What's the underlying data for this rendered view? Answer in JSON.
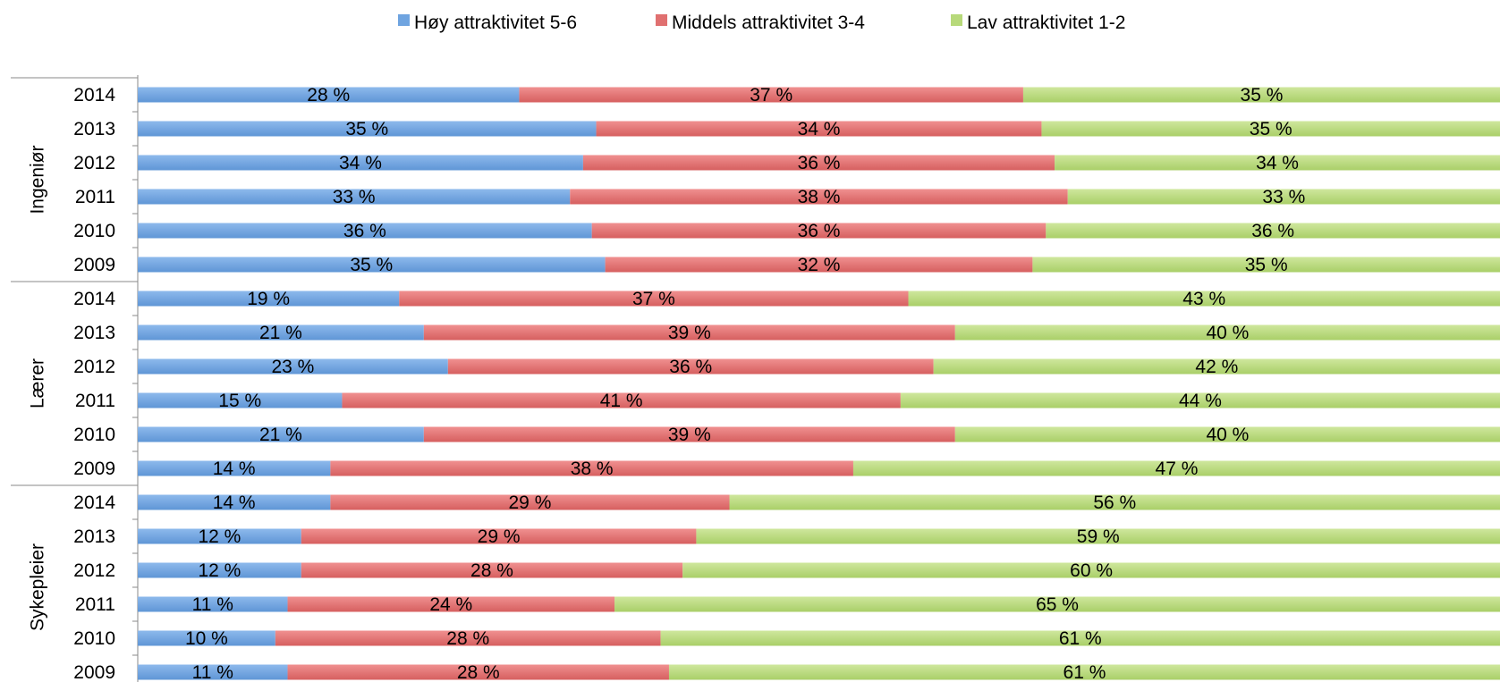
{
  "chart_data": {
    "type": "bar",
    "orientation": "horizontal",
    "stacked": true,
    "normalized": true,
    "legend_position": "top",
    "grid": false,
    "series_names": [
      "Høy attraktivitet 5-6",
      "Middels attraktivitet 3-4",
      "Lav attraktivitet 1-2"
    ],
    "colors": [
      "#6fa4e0",
      "#e07070",
      "#b7d97a"
    ],
    "groups": [
      {
        "name": "Ingeniør",
        "rows": [
          {
            "year": "2014",
            "values": [
              28,
              37,
              35
            ]
          },
          {
            "year": "2013",
            "values": [
              35,
              34,
              35
            ]
          },
          {
            "year": "2012",
            "values": [
              34,
              36,
              34
            ]
          },
          {
            "year": "2011",
            "values": [
              33,
              38,
              33
            ]
          },
          {
            "year": "2010",
            "values": [
              36,
              36,
              36
            ]
          },
          {
            "year": "2009",
            "values": [
              35,
              32,
              35
            ]
          }
        ]
      },
      {
        "name": "Lærer",
        "rows": [
          {
            "year": "2014",
            "values": [
              19,
              37,
              43
            ]
          },
          {
            "year": "2013",
            "values": [
              21,
              39,
              40
            ]
          },
          {
            "year": "2012",
            "values": [
              23,
              36,
              42
            ]
          },
          {
            "year": "2011",
            "values": [
              15,
              41,
              44
            ]
          },
          {
            "year": "2010",
            "values": [
              21,
              39,
              40
            ]
          },
          {
            "year": "2009",
            "values": [
              14,
              38,
              47
            ]
          }
        ]
      },
      {
        "name": "Sykepleier",
        "rows": [
          {
            "year": "2014",
            "values": [
              14,
              29,
              56
            ]
          },
          {
            "year": "2013",
            "values": [
              12,
              29,
              59
            ]
          },
          {
            "year": "2012",
            "values": [
              12,
              28,
              60
            ]
          },
          {
            "year": "2011",
            "values": [
              11,
              24,
              65
            ]
          },
          {
            "year": "2010",
            "values": [
              10,
              28,
              61
            ]
          },
          {
            "year": "2009",
            "values": [
              11,
              28,
              61
            ]
          }
        ]
      }
    ]
  }
}
